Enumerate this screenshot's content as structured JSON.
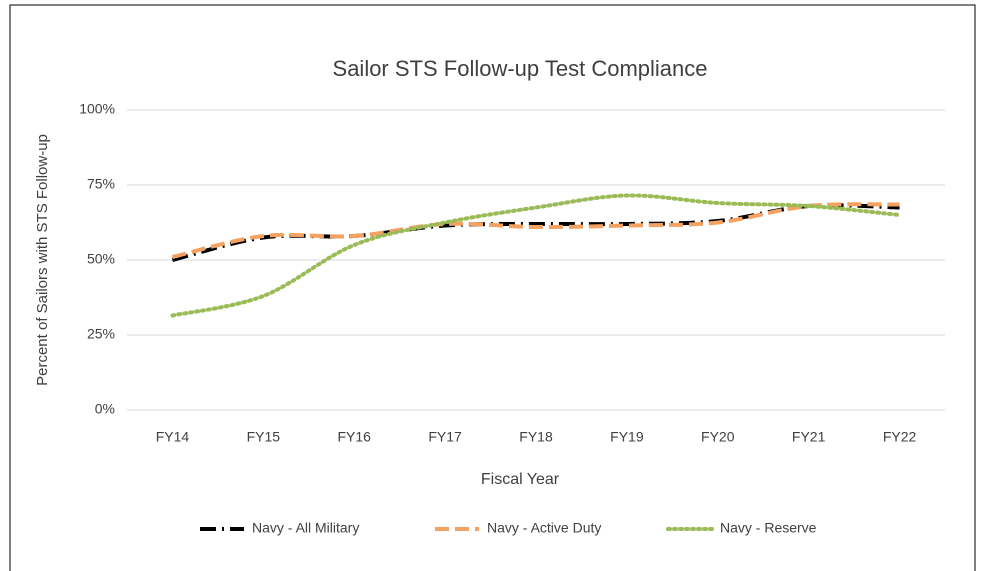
{
  "chart_data": {
    "type": "line",
    "title": "Sailor STS Follow-up Test Compliance",
    "x_label": "Fiscal Year",
    "y_label": "Percent of Sailors with STS Follow-up",
    "categories": [
      "FY14",
      "FY15",
      "FY16",
      "FY17",
      "FY18",
      "FY19",
      "FY20",
      "FY21",
      "FY22"
    ],
    "series": [
      {
        "name": "Navy - All Military",
        "color": "#000000",
        "dash": "dash-dot",
        "values": [
          50,
          57.5,
          58,
          61.5,
          62,
          62,
          63,
          68,
          67.5
        ]
      },
      {
        "name": "Navy - Active Duty",
        "color": "#f4a261",
        "dash": "dash",
        "values": [
          51,
          58,
          58,
          62,
          61,
          61.5,
          62.5,
          68,
          68.5
        ]
      },
      {
        "name": "Navy - Reserve",
        "color": "#9bbb59",
        "dash": "dot",
        "values": [
          31.5,
          38,
          55,
          62.5,
          67.5,
          71.5,
          69,
          68,
          65
        ]
      }
    ],
    "ylim": [
      0,
      100
    ],
    "yticks": [
      {
        "value": 0,
        "label": "0%"
      },
      {
        "value": 25,
        "label": "25%"
      },
      {
        "value": 50,
        "label": "50%"
      },
      {
        "value": 75,
        "label": "75%"
      },
      {
        "value": 100,
        "label": "100%"
      }
    ],
    "grid": true,
    "smooth": true,
    "legend": "bottom"
  }
}
